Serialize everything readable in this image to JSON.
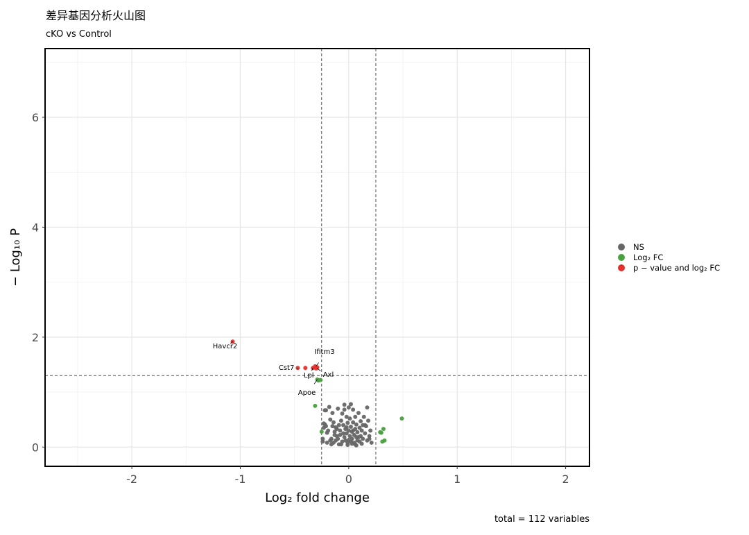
{
  "title": "差异基因分析火山图",
  "subtitle": "cKO vs Control",
  "caption": "total = 112 variables",
  "colors": {
    "ns": "#666666",
    "fc": "#4a9f3e",
    "sig": "#e3302c"
  },
  "legend": [
    {
      "label": "NS",
      "key": "ns"
    },
    {
      "label": "Log₂ FC",
      "key": "fc"
    },
    {
      "label": "p − value and log₂ FC",
      "key": "sig"
    }
  ],
  "chart_data": {
    "type": "scatter",
    "xlabel": "Log₂ fold change",
    "ylabel": "− Log₁₀ P",
    "xlim": [
      -2.8,
      2.22
    ],
    "ylim": [
      -0.35,
      7.25
    ],
    "x_ticks": [
      -2,
      -1,
      0,
      1,
      2
    ],
    "x_tick_labels": [
      "-2",
      "-1",
      "0",
      "1",
      "2"
    ],
    "y_ticks": [
      0,
      2,
      4,
      6
    ],
    "y_tick_labels": [
      "0",
      "2",
      "4",
      "6"
    ],
    "grid": true,
    "fc_cutoff": 0.25,
    "p_cutoff_neglog10": 1.3,
    "legend_position": "right",
    "series": [
      {
        "key": "sig",
        "points": [
          [
            -1.07,
            1.92
          ],
          [
            -0.47,
            1.44
          ],
          [
            -0.4,
            1.44
          ],
          [
            -0.33,
            1.44
          ],
          [
            -0.31,
            1.47
          ],
          [
            -0.3,
            1.43
          ],
          [
            -0.29,
            1.45
          ]
        ]
      },
      {
        "key": "fc",
        "points": [
          [
            -0.31,
            0.75
          ],
          [
            -0.29,
            1.23
          ],
          [
            -0.28,
            1.21
          ],
          [
            -0.26,
            1.22
          ],
          [
            -0.25,
            0.28
          ],
          [
            0.29,
            0.27
          ],
          [
            0.3,
            0.26
          ],
          [
            0.31,
            0.1
          ],
          [
            0.32,
            0.33
          ],
          [
            0.33,
            0.12
          ],
          [
            0.49,
            0.52
          ]
        ]
      },
      {
        "key": "ns",
        "points": [
          [
            -0.23,
            0.43
          ],
          [
            -0.22,
            0.41
          ],
          [
            -0.21,
            0.38
          ],
          [
            -0.24,
            0.1
          ],
          [
            -0.24,
            0.15
          ],
          [
            -0.23,
            0.35
          ],
          [
            -0.22,
            0.67
          ],
          [
            -0.21,
            0.67
          ],
          [
            -0.2,
            0.26
          ],
          [
            -0.19,
            0.3
          ],
          [
            -0.18,
            0.73
          ],
          [
            -0.17,
            0.12
          ],
          [
            -0.16,
            0.15
          ],
          [
            -0.15,
            0.62
          ],
          [
            -0.15,
            0.38
          ],
          [
            -0.14,
            0.08
          ],
          [
            -0.14,
            0.45
          ],
          [
            -0.13,
            0.28
          ],
          [
            -0.12,
            0.12
          ],
          [
            -0.12,
            0.36
          ],
          [
            -0.11,
            0.2
          ],
          [
            -0.1,
            0.7
          ],
          [
            -0.1,
            0.15
          ],
          [
            -0.09,
            0.4
          ],
          [
            -0.09,
            0.05
          ],
          [
            -0.08,
            0.3
          ],
          [
            -0.08,
            0.22
          ],
          [
            -0.07,
            0.48
          ],
          [
            -0.06,
            0.1
          ],
          [
            -0.06,
            0.61
          ],
          [
            -0.05,
            0.25
          ],
          [
            -0.05,
            0.4
          ],
          [
            -0.04,
            0.18
          ],
          [
            -0.04,
            0.77
          ],
          [
            -0.04,
            0.68
          ],
          [
            -0.03,
            0.12
          ],
          [
            -0.03,
            0.33
          ],
          [
            -0.02,
            0.55
          ],
          [
            -0.02,
            0.25
          ],
          [
            -0.01,
            0.44
          ],
          [
            -0.01,
            0.08
          ],
          [
            0.0,
            0.72
          ],
          [
            0.0,
            0.3
          ],
          [
            0.01,
            0.2
          ],
          [
            0.01,
            0.52
          ],
          [
            0.02,
            0.1
          ],
          [
            0.02,
            0.78
          ],
          [
            0.02,
            0.37
          ],
          [
            0.03,
            0.28
          ],
          [
            0.03,
            0.15
          ],
          [
            0.04,
            0.45
          ],
          [
            0.04,
            0.68
          ],
          [
            0.05,
            0.22
          ],
          [
            0.05,
            0.08
          ],
          [
            0.06,
            0.33
          ],
          [
            0.06,
            0.55
          ],
          [
            0.07,
            0.18
          ],
          [
            0.07,
            0.41
          ],
          [
            0.08,
            0.12
          ],
          [
            0.08,
            0.27
          ],
          [
            0.09,
            0.62
          ],
          [
            0.1,
            0.35
          ],
          [
            0.1,
            0.1
          ],
          [
            0.11,
            0.2
          ],
          [
            0.11,
            0.47
          ],
          [
            0.12,
            0.3
          ],
          [
            0.13,
            0.15
          ],
          [
            0.13,
            0.4
          ],
          [
            0.14,
            0.55
          ],
          [
            0.15,
            0.25
          ],
          [
            0.16,
            0.38
          ],
          [
            0.17,
            0.72
          ],
          [
            0.17,
            0.12
          ],
          [
            0.18,
            0.48
          ],
          [
            0.19,
            0.2
          ],
          [
            0.2,
            0.3
          ],
          [
            0.21,
            0.08
          ],
          [
            -0.07,
            0.05
          ],
          [
            -0.01,
            0.04
          ],
          [
            0.03,
            0.06
          ],
          [
            0.06,
            0.05
          ],
          [
            0.12,
            0.06
          ],
          [
            -0.16,
            0.05
          ],
          [
            -0.11,
            0.33
          ],
          [
            0.0,
            0.13
          ],
          [
            0.09,
            0.18
          ],
          [
            -0.02,
            0.36
          ],
          [
            0.04,
            0.3
          ],
          [
            0.15,
            0.4
          ],
          [
            -0.2,
            0.08
          ],
          [
            -0.17,
            0.5
          ],
          [
            0.19,
            0.15
          ],
          [
            -0.13,
            0.22
          ],
          [
            0.07,
            0.03
          ]
        ]
      }
    ],
    "labels": [
      {
        "text": "Havcr2",
        "x": -1.07,
        "y": 1.92
      },
      {
        "text": "Cst7",
        "x": -0.47,
        "y": 1.44
      },
      {
        "text": "Ifitm3",
        "x": -0.3,
        "y": 1.47
      },
      {
        "text": "Lpl",
        "x": -0.33,
        "y": 1.44
      },
      {
        "text": "Axl",
        "x": -0.29,
        "y": 1.43
      },
      {
        "text": "Apoe",
        "x": -0.29,
        "y": 1.23
      }
    ]
  }
}
